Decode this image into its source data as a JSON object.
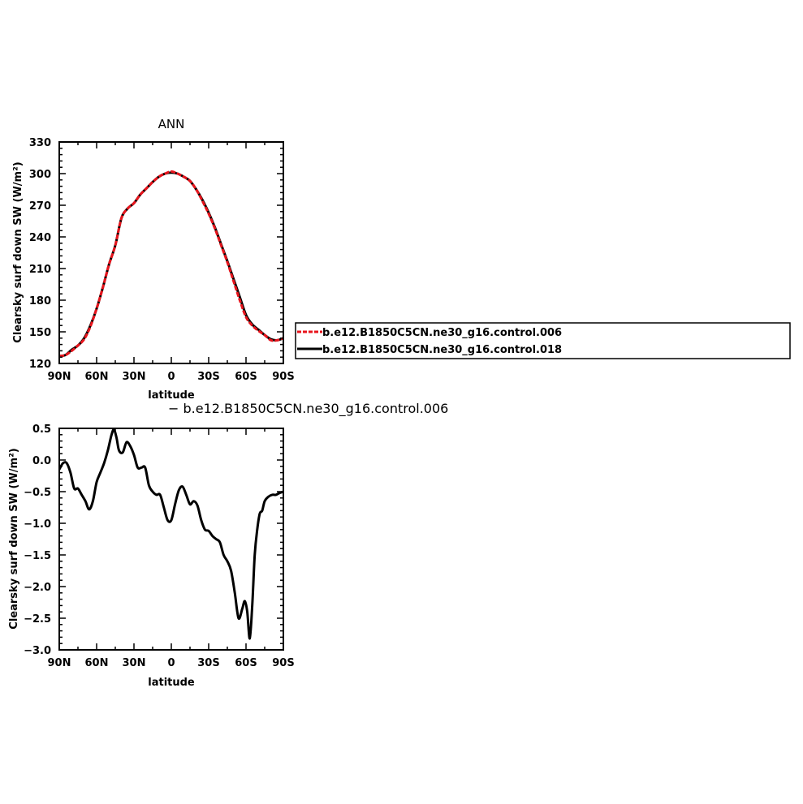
{
  "colors": {
    "red": "#e8141c",
    "black": "#000000"
  },
  "chart_data": [
    {
      "type": "line",
      "title": "ANN",
      "xlabel": "latitude",
      "ylabel": "Clearsky surf down SW (W/m²)",
      "xlim": [
        90,
        -90
      ],
      "ylim": [
        120,
        330
      ],
      "x_ticks": [
        90,
        60,
        30,
        0,
        -30,
        -60,
        -90
      ],
      "x_tick_labels": [
        "90N",
        "60N",
        "30N",
        "0",
        "30S",
        "60S",
        "90S"
      ],
      "y_ticks": [
        120,
        150,
        180,
        210,
        240,
        270,
        300,
        330
      ],
      "y_tick_labels": [
        "120",
        "150",
        "180",
        "210",
        "240",
        "270",
        "300",
        "330"
      ],
      "legend_position": "right",
      "series": [
        {
          "name": "b.e12.B1850C5CN.ne30_g16.control.006",
          "color": "#e8141c",
          "style": "dashed",
          "x": [
            90,
            85,
            80,
            75,
            70,
            65,
            60,
            55,
            50,
            45,
            40,
            35,
            30,
            25,
            20,
            15,
            10,
            5,
            0,
            -5,
            -10,
            -15,
            -20,
            -25,
            -30,
            -35,
            -40,
            -45,
            -50,
            -55,
            -60,
            -65,
            -70,
            -75,
            -80,
            -85,
            -90
          ],
          "y": [
            127,
            128,
            132,
            137,
            143,
            155,
            172,
            192,
            214,
            232,
            258,
            267,
            272,
            280,
            286,
            292,
            297,
            300,
            302,
            300,
            297,
            293,
            285,
            274,
            262,
            248,
            232,
            216,
            198,
            180,
            164,
            156,
            151,
            147,
            142,
            142,
            144
          ]
        },
        {
          "name": "b.e12.B1850C5CN.ne30_g16.control.018",
          "color": "#000000",
          "style": "solid",
          "x": [
            90,
            85,
            80,
            75,
            70,
            65,
            60,
            55,
            50,
            45,
            40,
            35,
            30,
            25,
            20,
            15,
            10,
            5,
            0,
            -5,
            -10,
            -15,
            -20,
            -25,
            -30,
            -35,
            -40,
            -45,
            -50,
            -55,
            -60,
            -65,
            -70,
            -75,
            -80,
            -85,
            -90
          ],
          "y": [
            127,
            128,
            133,
            137,
            144,
            156,
            172,
            192,
            214,
            232,
            258,
            267,
            272,
            280,
            286,
            292,
            297,
            300,
            301,
            300,
            297,
            293,
            285,
            275,
            263,
            249,
            233,
            217,
            200,
            183,
            166,
            157,
            152,
            147,
            143,
            142,
            144
          ]
        }
      ]
    },
    {
      "type": "line",
      "title": "− b.e12.B1850C5CN.ne30_g16.control.006",
      "xlabel": "latitude",
      "ylabel": "Clearsky surf down SW (W/m²)",
      "xlim": [
        90,
        -90
      ],
      "ylim": [
        -3.0,
        0.5
      ],
      "x_ticks": [
        90,
        60,
        30,
        0,
        -30,
        -60,
        -90
      ],
      "x_tick_labels": [
        "90N",
        "60N",
        "30N",
        "0",
        "30S",
        "60S",
        "90S"
      ],
      "y_ticks": [
        -3.0,
        -2.5,
        -2.0,
        -1.5,
        -1.0,
        -0.5,
        0.0,
        0.5
      ],
      "y_tick_labels": [
        "−3.0",
        "−2.5",
        "−2.0",
        "−1.5",
        "−1.0",
        "−0.5",
        "0.0",
        "0.5"
      ],
      "series": [
        {
          "color": "#000000",
          "style": "solid",
          "x": [
            90,
            87,
            84,
            81,
            78,
            75,
            72,
            69,
            66,
            63,
            60,
            57,
            54,
            51,
            48,
            46,
            44,
            42,
            39,
            36,
            33,
            30,
            27,
            24,
            21,
            18,
            15,
            12,
            9,
            6,
            3,
            0,
            -3,
            -6,
            -9,
            -12,
            -15,
            -18,
            -21,
            -24,
            -27,
            -30,
            -33,
            -36,
            -39,
            -42,
            -45,
            -48,
            -51,
            -54,
            -57,
            -59,
            -61,
            -63,
            -65,
            -67,
            -69,
            -71,
            -73,
            -75,
            -78,
            -81,
            -84,
            -87,
            -90
          ],
          "y": [
            -0.15,
            -0.05,
            -0.05,
            -0.2,
            -0.45,
            -0.45,
            -0.55,
            -0.65,
            -0.78,
            -0.65,
            -0.35,
            -0.2,
            -0.05,
            0.15,
            0.4,
            0.48,
            0.35,
            0.15,
            0.12,
            0.28,
            0.22,
            0.08,
            -0.12,
            -0.12,
            -0.12,
            -0.4,
            -0.5,
            -0.55,
            -0.55,
            -0.75,
            -0.95,
            -0.95,
            -0.7,
            -0.48,
            -0.42,
            -0.55,
            -0.7,
            -0.65,
            -0.72,
            -0.95,
            -1.1,
            -1.12,
            -1.2,
            -1.25,
            -1.3,
            -1.5,
            -1.6,
            -1.75,
            -2.1,
            -2.5,
            -2.35,
            -2.23,
            -2.4,
            -2.82,
            -2.3,
            -1.5,
            -1.1,
            -0.85,
            -0.8,
            -0.65,
            -0.58,
            -0.55,
            -0.55,
            -0.52,
            -0.5
          ]
        }
      ]
    }
  ]
}
